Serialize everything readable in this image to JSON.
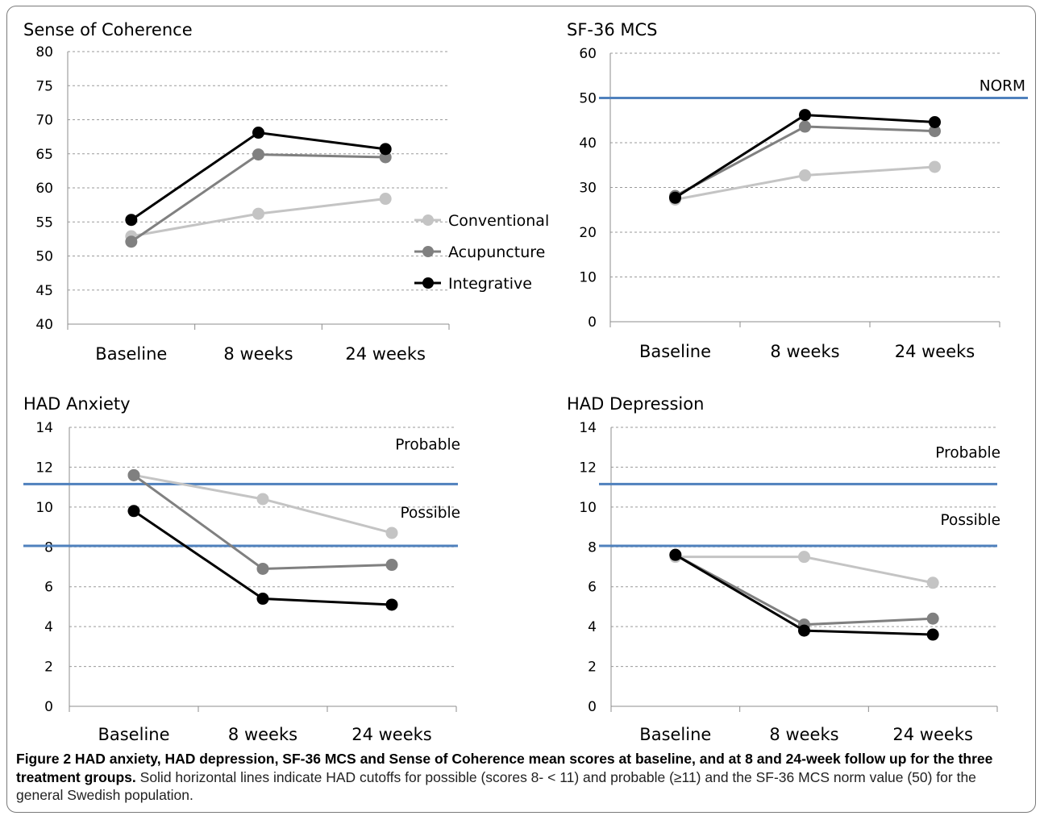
{
  "chart_data": [
    {
      "type": "line",
      "title": "Sense of Coherence",
      "categories": [
        "Baseline",
        "8 weeks",
        "24 weeks"
      ],
      "ylim": [
        40,
        80
      ],
      "yticks": [
        "40",
        "45",
        "50",
        "55",
        "60",
        "65",
        "70",
        "75",
        "80"
      ],
      "grid": true,
      "legend": "right",
      "series": [
        {
          "name": "Conventional",
          "values": [
            52.9,
            56.2,
            58.4
          ],
          "color": "#c4c4c4"
        },
        {
          "name": "Acupuncture",
          "values": [
            52.1,
            64.9,
            64.5
          ],
          "color": "#808080"
        },
        {
          "name": "Integrative",
          "values": [
            55.3,
            68.1,
            65.7
          ],
          "color": "#000000"
        }
      ],
      "reference_lines": []
    },
    {
      "type": "line",
      "title": "SF-36 MCS",
      "categories": [
        "Baseline",
        "8 weeks",
        "24 weeks"
      ],
      "ylim": [
        0,
        60
      ],
      "yticks": [
        "0",
        "10",
        "20",
        "30",
        "40",
        "50",
        "60"
      ],
      "grid": true,
      "series": [
        {
          "values": [
            27.3,
            32.7,
            34.6
          ],
          "color": "#c4c4c4"
        },
        {
          "values": [
            28.1,
            43.6,
            42.6
          ],
          "color": "#808080"
        },
        {
          "values": [
            27.7,
            46.2,
            44.6
          ],
          "color": "#000000"
        }
      ],
      "reference_lines": [
        {
          "value": 50,
          "label": "NORM",
          "color": "#4f81bd"
        }
      ]
    },
    {
      "type": "line",
      "title": "HAD Anxiety",
      "categories": [
        "Baseline",
        "8 weeks",
        "24 weeks"
      ],
      "ylim": [
        0,
        14
      ],
      "yticks": [
        "0",
        "2",
        "4",
        "6",
        "8",
        "10",
        "12",
        "14"
      ],
      "grid": true,
      "series": [
        {
          "values": [
            11.6,
            10.4,
            8.7
          ],
          "color": "#c4c4c4"
        },
        {
          "values": [
            11.6,
            6.9,
            7.1
          ],
          "color": "#808080"
        },
        {
          "values": [
            9.8,
            5.4,
            5.1
          ],
          "color": "#000000"
        }
      ],
      "reference_lines": [
        {
          "value": 11.15,
          "label": "Probable",
          "color": "#4f81bd"
        },
        {
          "value": 8.05,
          "label": "Possible",
          "color": "#4f81bd"
        }
      ]
    },
    {
      "type": "line",
      "title": "HAD Depression",
      "categories": [
        "Baseline",
        "8 weeks",
        "24 weeks"
      ],
      "ylim": [
        0,
        14
      ],
      "yticks": [
        "0",
        "2",
        "4",
        "6",
        "8",
        "10",
        "12",
        "14"
      ],
      "grid": true,
      "series": [
        {
          "values": [
            7.5,
            7.5,
            6.2
          ],
          "color": "#c4c4c4"
        },
        {
          "values": [
            7.6,
            4.1,
            4.4
          ],
          "color": "#808080"
        },
        {
          "values": [
            7.6,
            3.8,
            3.6
          ],
          "color": "#000000"
        }
      ],
      "reference_lines": [
        {
          "value": 11.15,
          "label": "Probable",
          "color": "#4f81bd"
        },
        {
          "value": 8.05,
          "label": "Possible",
          "color": "#4f81bd"
        }
      ]
    }
  ],
  "caption": {
    "bold": "Figure 2 HAD anxiety, HAD depression, SF-36 MCS and Sense of Coherence mean scores at baseline, and at 8 and 24-week follow up for the three treatment groups.",
    "text": " Solid horizontal lines indicate HAD cutoffs for possible (scores 8- < 11) and probable (≥11) and the SF-36 MCS norm value (50) for the general Swedish population."
  }
}
